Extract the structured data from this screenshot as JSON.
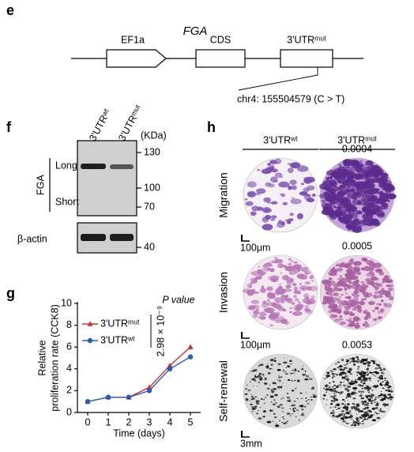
{
  "panel_e": {
    "letter": "e",
    "gene": "FGA",
    "elements": [
      "EF1a",
      "CDS",
      "3'UTRᵐᵘᵗ"
    ],
    "variant": "chr4: 155504579 (C > T)"
  },
  "panel_f": {
    "letter": "f",
    "lanes": [
      "3'UTRʷᵗ",
      "3'UTRᵐᵘᵗ"
    ],
    "unit": "(KDa)",
    "markers": [
      130,
      100,
      70,
      40
    ],
    "protein": "FGA",
    "isoforms": [
      "Long",
      "Short"
    ],
    "loading_control": "β-actin"
  },
  "chart_data": {
    "type": "line",
    "letter": "g",
    "x_label": "Time (days)",
    "y_label": [
      "Relative",
      "proliferation rate (CCK8)"
    ],
    "x": [
      0,
      1,
      2,
      3,
      4,
      5
    ],
    "series": [
      {
        "name": "3'UTRᵐᵘᵗ",
        "color": "#c8323c",
        "marker": "triangle",
        "values": [
          1.0,
          1.4,
          1.4,
          2.3,
          4.3,
          6.0
        ]
      },
      {
        "name": "3'UTRʷᵗ",
        "color": "#2a5cb0",
        "marker": "circle",
        "values": [
          1.0,
          1.4,
          1.4,
          2.0,
          4.0,
          5.1
        ]
      }
    ],
    "xlim": [
      -0.5,
      5.5
    ],
    "xticks": [
      0,
      1,
      2,
      3,
      4,
      5
    ],
    "ylim": [
      0,
      10
    ],
    "yticks": [
      0,
      2,
      4,
      6,
      8,
      10
    ],
    "annotation": {
      "title": "P value",
      "text": "2.98 × 10⁻⁹"
    }
  },
  "panel_h": {
    "letter": "h",
    "columns": [
      "3'UTRʷᵗ",
      "3'UTRᵐᵘᵗ"
    ],
    "rows": [
      {
        "label": "Migration",
        "p": "0.0004",
        "scale": "100μm"
      },
      {
        "label": "Invasion",
        "p": "0.0005",
        "scale": "100μm"
      },
      {
        "label": "Self-renewal",
        "p": "0.0053",
        "scale": "3mm"
      }
    ]
  }
}
